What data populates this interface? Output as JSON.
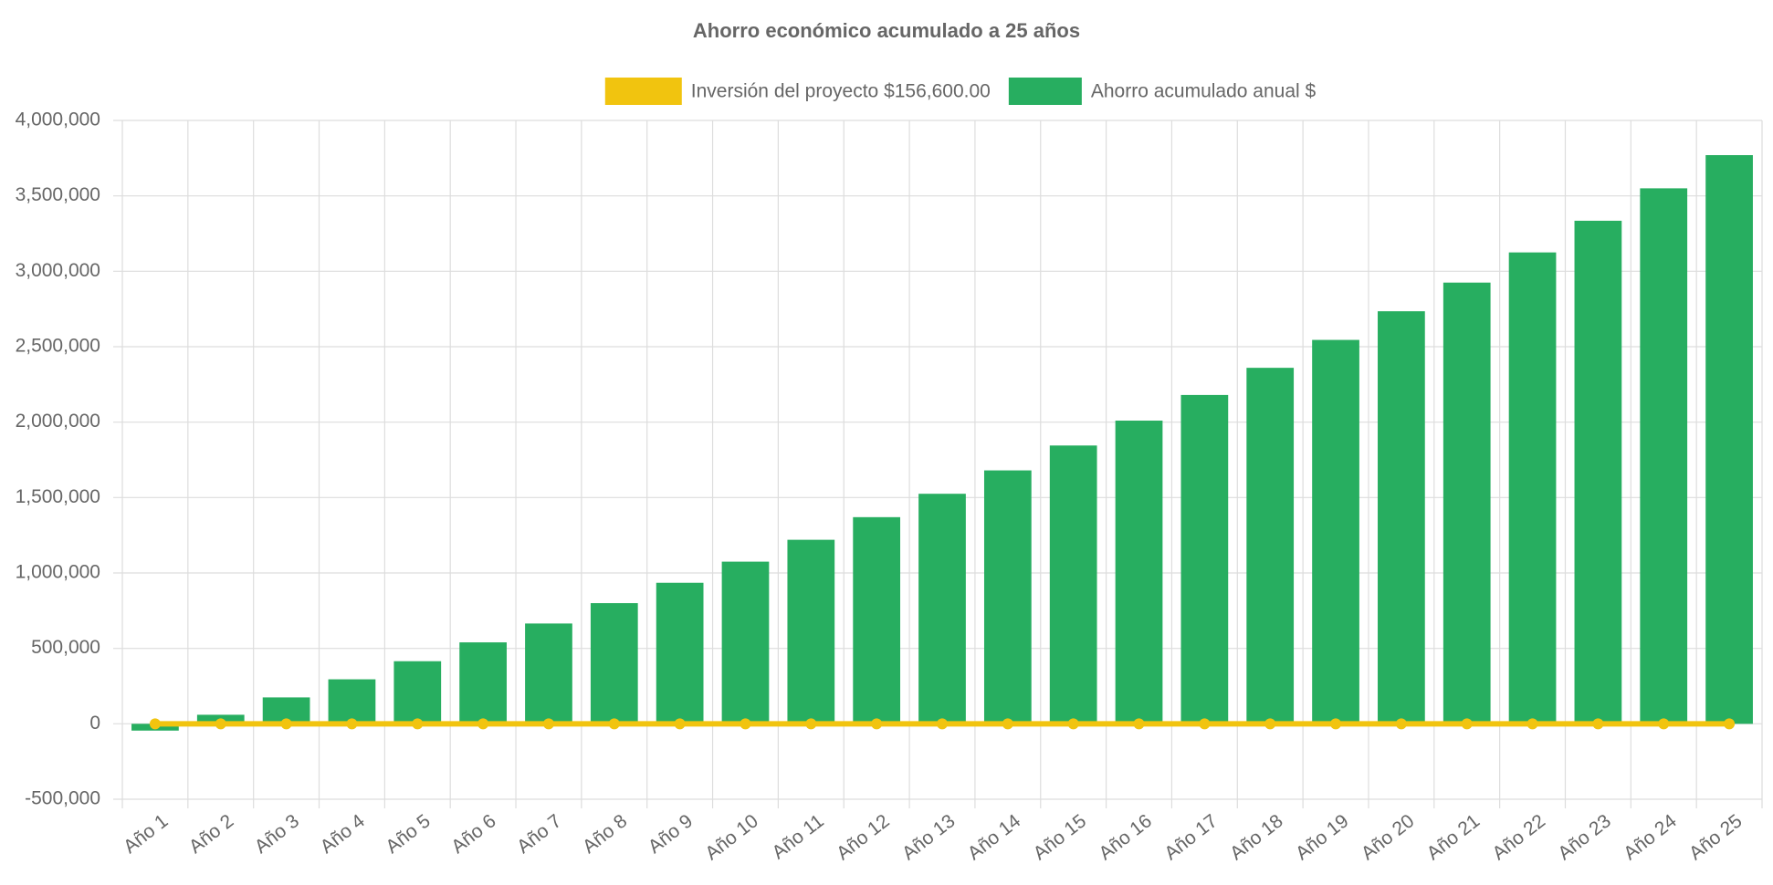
{
  "chart_data": {
    "type": "bar",
    "title": "Ahorro económico acumulado a 25 años",
    "categories": [
      "Año 1",
      "Año 2",
      "Año 3",
      "Año 4",
      "Año 5",
      "Año 6",
      "Año 7",
      "Año 8",
      "Año 9",
      "Año 10",
      "Año 11",
      "Año 12",
      "Año 13",
      "Año 14",
      "Año 15",
      "Año 16",
      "Año 17",
      "Año 18",
      "Año 19",
      "Año 20",
      "Año 21",
      "Año 22",
      "Año 23",
      "Año 24",
      "Año 25"
    ],
    "series": [
      {
        "name": "Inversión del proyecto $156,600.00",
        "type": "line",
        "color": "#f1c40f",
        "values": [
          0,
          0,
          0,
          0,
          0,
          0,
          0,
          0,
          0,
          0,
          0,
          0,
          0,
          0,
          0,
          0,
          0,
          0,
          0,
          0,
          0,
          0,
          0,
          0,
          0
        ]
      },
      {
        "name": "Ahorro acumulado anual $",
        "type": "bar",
        "color": "#27ae60",
        "values": [
          -45000,
          60000,
          175000,
          295000,
          415000,
          540000,
          665000,
          800000,
          935000,
          1075000,
          1220000,
          1370000,
          1525000,
          1680000,
          1845000,
          2010000,
          2180000,
          2360000,
          2545000,
          2735000,
          2925000,
          3125000,
          3335000,
          3550000,
          3770000
        ]
      }
    ],
    "ylim": [
      -500000,
      4000000
    ],
    "yticks": [
      {
        "value": -500000,
        "label": "-500,000"
      },
      0,
      {
        "value": 500000,
        "label": "500,000"
      },
      {
        "value": 1000000,
        "label": "1,000,000"
      },
      {
        "value": 1500000,
        "label": "1,500,000"
      },
      {
        "value": 2000000,
        "label": "2,000,000"
      },
      {
        "value": 2500000,
        "label": "2,500,000"
      },
      {
        "value": 3000000,
        "label": "3,000,000"
      },
      {
        "value": 3500000,
        "label": "3,500,000"
      },
      {
        "value": 4000000,
        "label": "4,000,000"
      }
    ],
    "grid": true,
    "legend": "top"
  }
}
